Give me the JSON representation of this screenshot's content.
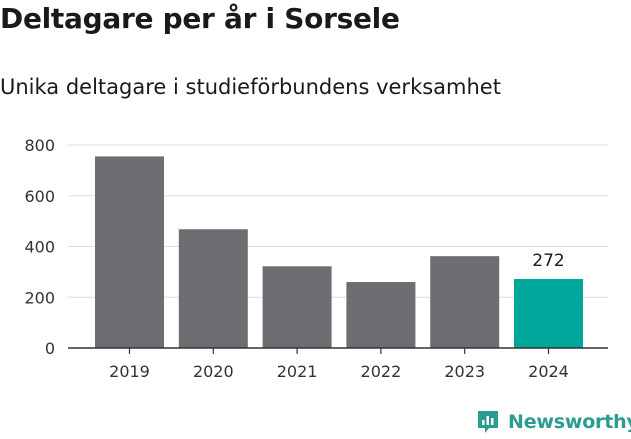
{
  "title": "Deltagare per år i Sorsele",
  "subtitle": "Unika deltagare i studieförbundens verksamhet",
  "brand": "Newsworthy",
  "colors": {
    "bar": "#6e6d72",
    "highlight": "#00a79a",
    "grid": "#dddddd",
    "brand": "#2b9c8e"
  },
  "chart_data": {
    "type": "bar",
    "title": "Deltagare per år i Sorsele",
    "subtitle": "Unika deltagare i studieförbundens verksamhet",
    "categories": [
      "2019",
      "2020",
      "2021",
      "2022",
      "2023",
      "2024"
    ],
    "values": [
      755,
      468,
      322,
      260,
      362,
      272
    ],
    "ylim": [
      0,
      800
    ],
    "yticks": [
      0,
      200,
      400,
      600,
      800
    ],
    "highlight_index": 5,
    "data_labels": [
      {
        "index": 5,
        "text": "272"
      }
    ],
    "grid": true,
    "xlabel": "",
    "ylabel": ""
  }
}
